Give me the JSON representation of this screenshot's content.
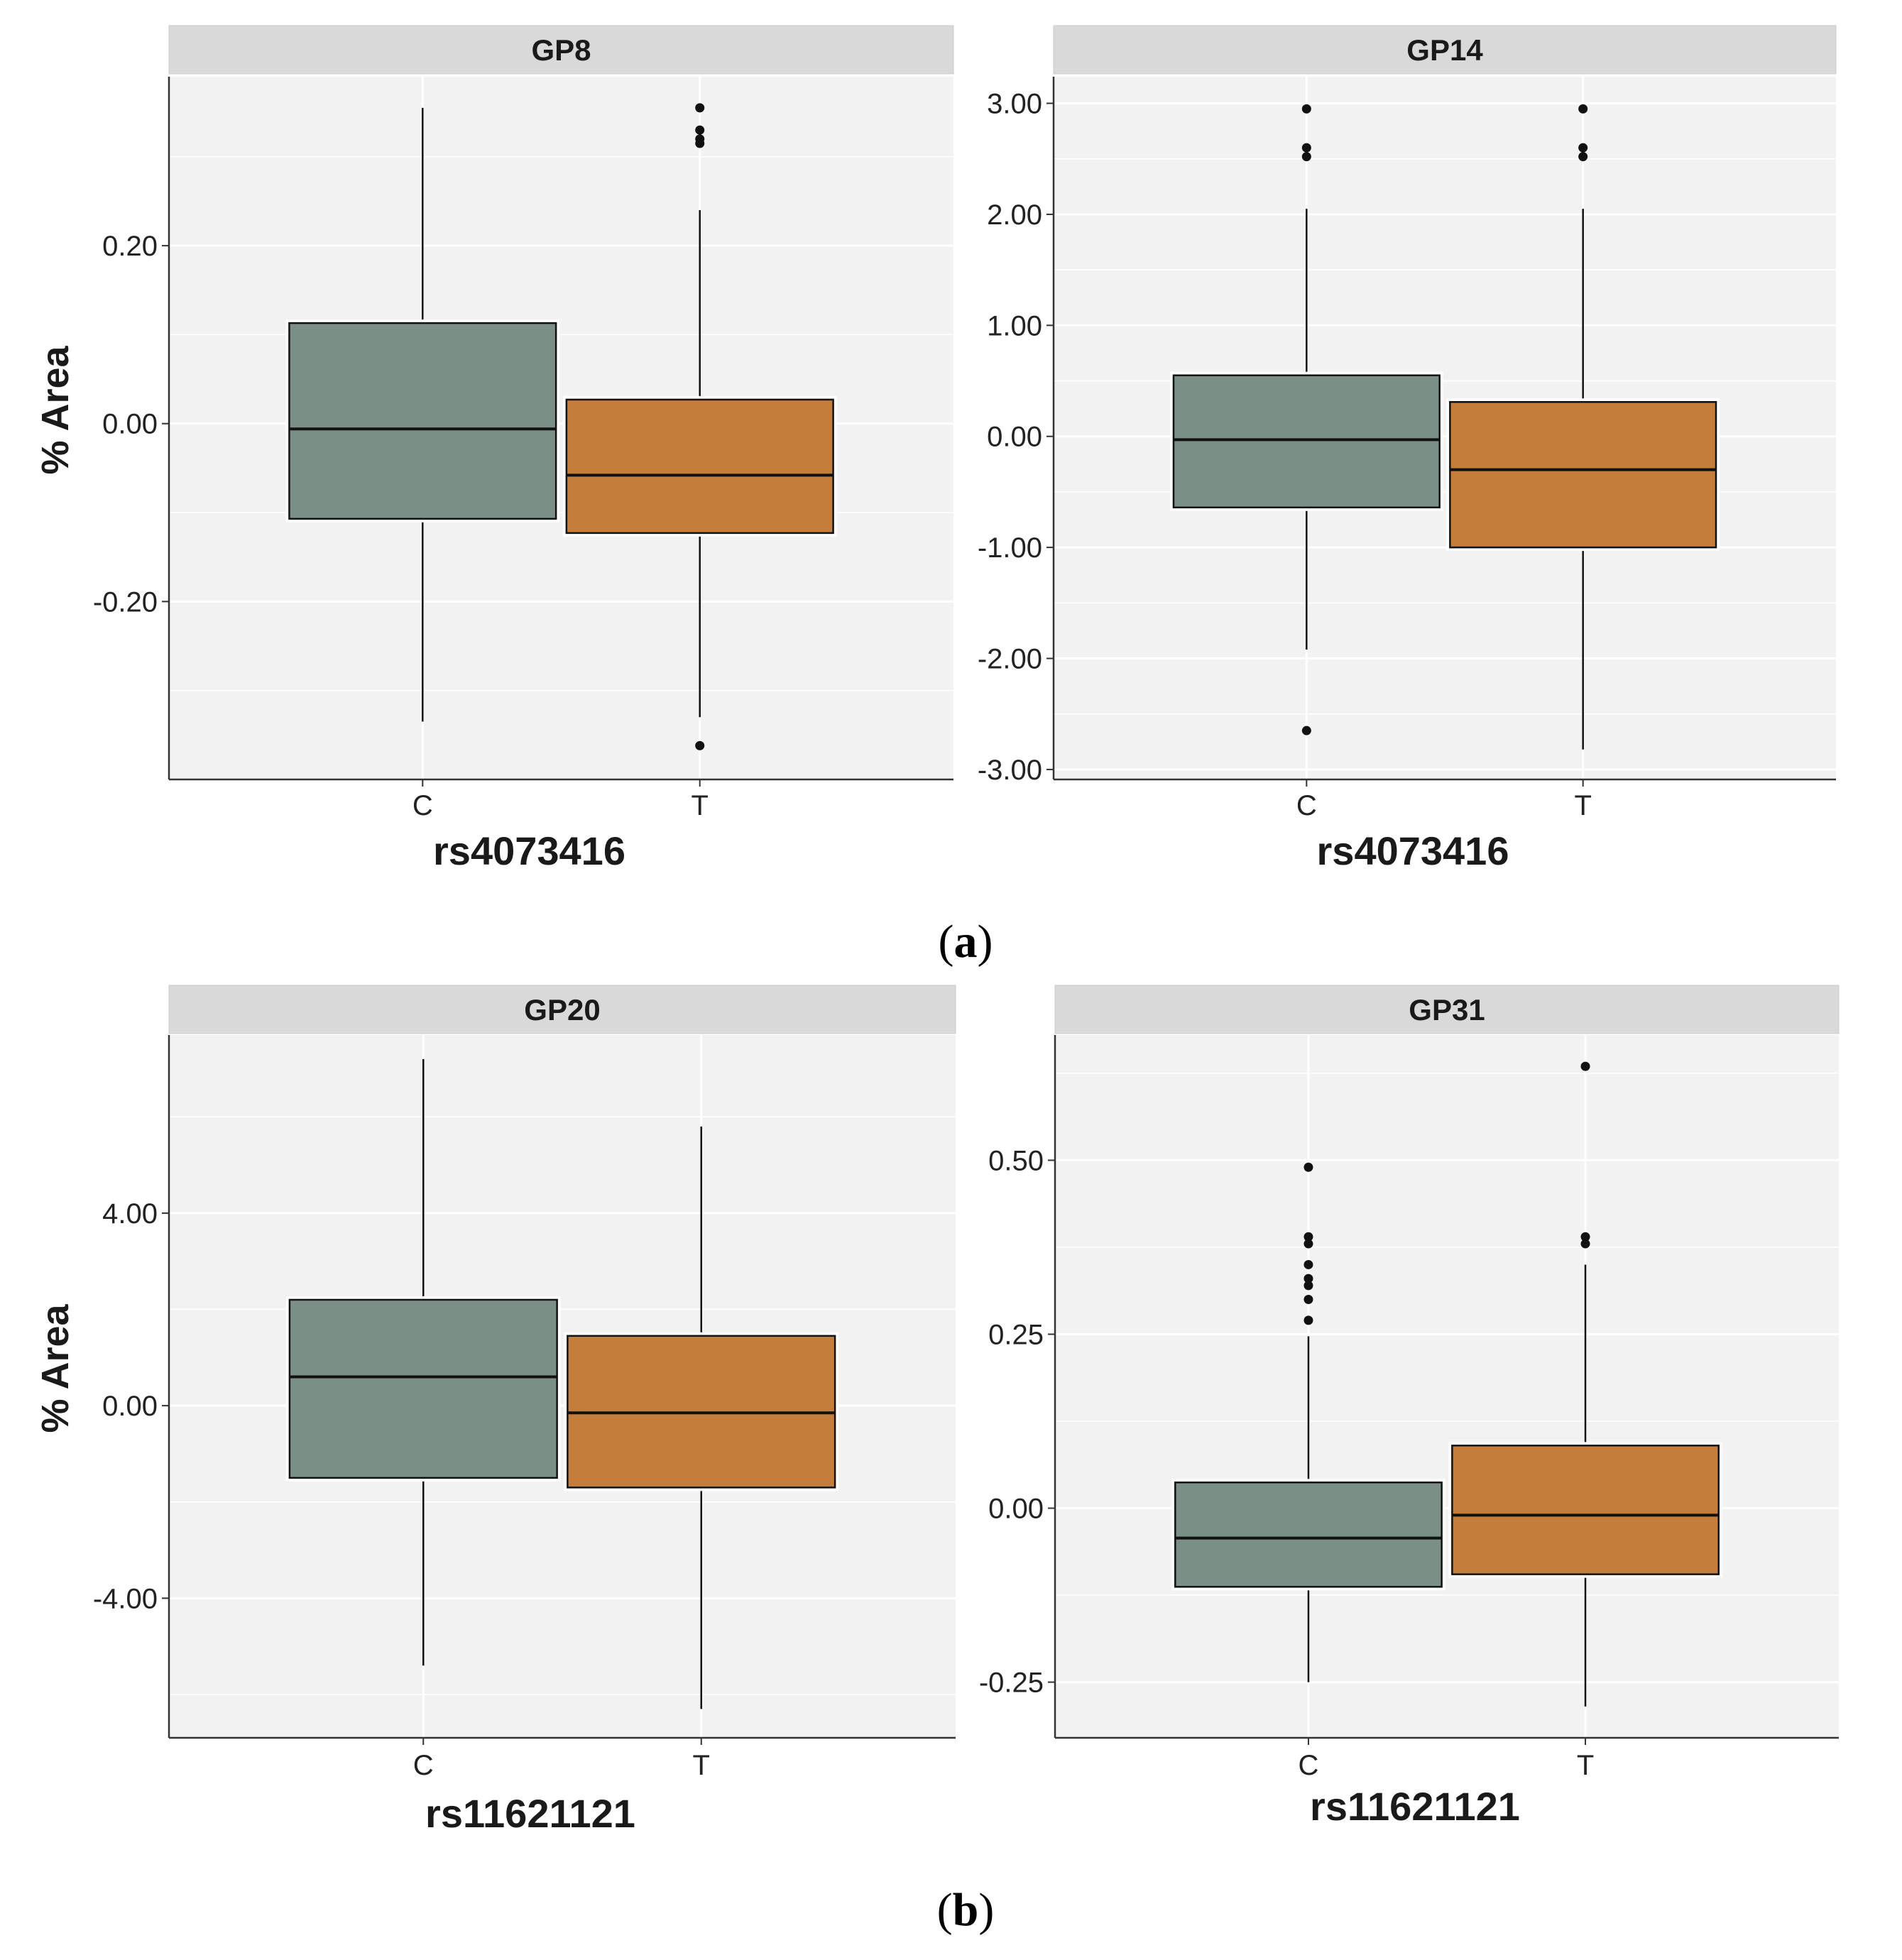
{
  "colors": {
    "C": "#7a8f86",
    "T": "#c47d3a",
    "panel_bg": "#f2f2f2",
    "strip_bg": "#d9d9d9",
    "grid": "#ffffff",
    "outline": "#111111"
  },
  "figure_captions": [
    {
      "label": "(a)",
      "letter": "a"
    },
    {
      "label": "(b)",
      "letter": "b"
    }
  ],
  "chart_data": [
    {
      "type": "box",
      "title": "GP8",
      "xlabel": "rs4073416",
      "ylabel": "% Area",
      "categories": [
        "C",
        "T"
      ],
      "ylim": [
        -0.4,
        0.39
      ],
      "yticks": [
        -0.2,
        0.0,
        0.2
      ],
      "ytick_labels": [
        "-0.20",
        "0.00",
        "0.20"
      ],
      "boxes": [
        {
          "group": "C",
          "whisker_low": -0.335,
          "q1": -0.107,
          "median": -0.006,
          "q3": 0.113,
          "whisker_high": 0.355,
          "outliers": []
        },
        {
          "group": "T",
          "whisker_low": -0.33,
          "q1": -0.123,
          "median": -0.058,
          "q3": 0.027,
          "whisker_high": 0.24,
          "outliers": [
            0.355,
            0.33,
            0.32,
            0.315,
            -0.362
          ]
        }
      ]
    },
    {
      "type": "box",
      "title": "GP14",
      "xlabel": "rs4073416",
      "ylabel": "",
      "categories": [
        "C",
        "T"
      ],
      "ylim": [
        -3.09,
        3.24
      ],
      "yticks": [
        -3,
        -2,
        -1,
        0,
        1,
        2,
        3
      ],
      "ytick_labels": [
        "-3.00",
        "-2.00",
        "-1.00",
        "0.00",
        "1.00",
        "2.00",
        "3.00"
      ],
      "boxes": [
        {
          "group": "C",
          "whisker_low": -1.92,
          "q1": -0.64,
          "median": -0.03,
          "q3": 0.55,
          "whisker_high": 2.05,
          "outliers": [
            2.95,
            2.6,
            2.52,
            -2.65
          ]
        },
        {
          "group": "T",
          "whisker_low": -2.82,
          "q1": -1.0,
          "median": -0.3,
          "q3": 0.31,
          "whisker_high": 2.05,
          "outliers": [
            2.95,
            2.6,
            2.52
          ]
        }
      ]
    },
    {
      "type": "box",
      "title": "GP20",
      "xlabel": "rs11621121",
      "ylabel": "% Area",
      "categories": [
        "C",
        "T"
      ],
      "ylim": [
        -6.9,
        7.7
      ],
      "yticks": [
        -4,
        0,
        4
      ],
      "ytick_labels": [
        "-4.00",
        "0.00",
        "4.00"
      ],
      "boxes": [
        {
          "group": "C",
          "whisker_low": -5.4,
          "q1": -1.5,
          "median": 0.6,
          "q3": 2.2,
          "whisker_high": 7.2,
          "outliers": []
        },
        {
          "group": "T",
          "whisker_low": -6.3,
          "q1": -1.7,
          "median": -0.15,
          "q3": 1.45,
          "whisker_high": 5.8,
          "outliers": []
        }
      ]
    },
    {
      "type": "box",
      "title": "GP31",
      "xlabel": "rs11621121",
      "ylabel": "",
      "categories": [
        "C",
        "T"
      ],
      "ylim": [
        -0.33,
        0.68
      ],
      "yticks": [
        -0.25,
        0.0,
        0.25,
        0.5
      ],
      "ytick_labels": [
        "-0.25",
        "0.00",
        "0.25",
        "0.50"
      ],
      "boxes": [
        {
          "group": "C",
          "whisker_low": -0.25,
          "q1": -0.113,
          "median": -0.043,
          "q3": 0.037,
          "whisker_high": 0.247,
          "outliers": [
            0.49,
            0.39,
            0.38,
            0.35,
            0.33,
            0.32,
            0.3,
            0.27
          ]
        },
        {
          "group": "T",
          "whisker_low": -0.285,
          "q1": -0.095,
          "median": -0.01,
          "q3": 0.09,
          "whisker_high": 0.35,
          "outliers": [
            0.635,
            0.39,
            0.38
          ]
        }
      ]
    }
  ]
}
